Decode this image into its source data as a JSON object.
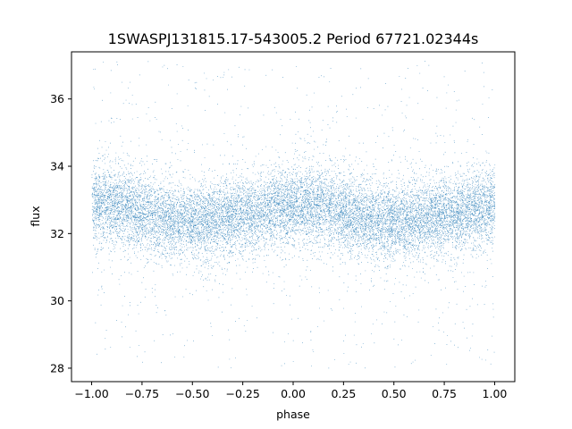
{
  "chart_data": {
    "type": "scatter",
    "title": "1SWASPJ131815.17-543005.2 Period 67721.02344s",
    "xlabel": "phase",
    "ylabel": "flux",
    "xlim": [
      -1.1,
      1.1
    ],
    "ylim": [
      27.6,
      37.4
    ],
    "xticks": [
      -1.0,
      -0.75,
      -0.5,
      -0.25,
      0.0,
      0.25,
      0.5,
      0.75,
      1.0
    ],
    "xtick_labels": [
      "−1.00",
      "−0.75",
      "−0.50",
      "−0.25",
      "0.00",
      "0.25",
      "0.50",
      "0.75",
      "1.00"
    ],
    "yticks": [
      28,
      30,
      32,
      34,
      36
    ],
    "ytick_labels": [
      "28",
      "30",
      "32",
      "34",
      "36"
    ],
    "grid": false,
    "point_color": "#1f77b4",
    "series": [
      {
        "phase": [
          -1.0,
          -0.9,
          -0.8,
          -0.7,
          -0.6,
          -0.5,
          -0.4,
          -0.3,
          -0.2,
          -0.1,
          0.0,
          0.1,
          0.2,
          0.3,
          0.4,
          0.5,
          0.6,
          0.7,
          0.8,
          0.9,
          1.0
        ],
        "flux": [
          32.9,
          32.85,
          32.75,
          32.55,
          32.4,
          32.35,
          32.4,
          32.5,
          32.6,
          32.75,
          32.85,
          32.85,
          32.75,
          32.55,
          32.4,
          32.35,
          32.4,
          32.5,
          32.6,
          32.75,
          32.85
        ],
        "scatter_sd": 0.55,
        "outlier_range": [
          28.0,
          37.2
        ],
        "n_points": 16000
      }
    ]
  }
}
